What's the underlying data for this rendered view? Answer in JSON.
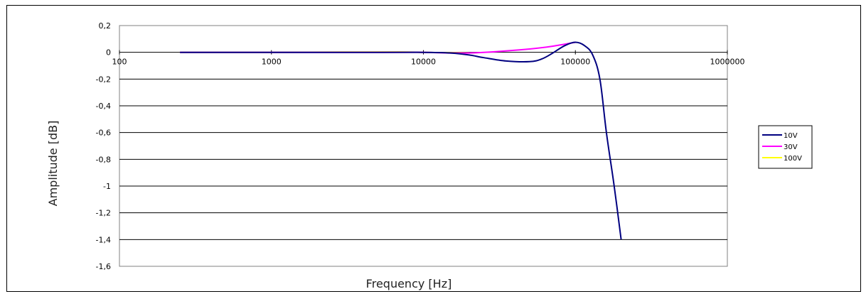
{
  "chart_data": {
    "type": "line",
    "title": "",
    "xlabel": "Frequency [Hz]",
    "ylabel": "Amplitude [dB]",
    "x_scale": "log",
    "xlim": [
      100,
      1000000
    ],
    "ylim": [
      -1.6,
      0.2
    ],
    "x_ticks": [
      100,
      1000,
      10000,
      100000,
      1000000
    ],
    "x_tick_labels": [
      "100",
      "1000",
      "10000",
      "100000",
      "1000000"
    ],
    "y_ticks": [
      0.2,
      0,
      -0.2,
      -0.4,
      -0.6,
      -0.8,
      -1,
      -1.2,
      -1.4,
      -1.6
    ],
    "y_tick_labels": [
      "0,2",
      "0",
      "-0,2",
      "-0,4",
      "-0,6",
      "-0,8",
      "-1",
      "-1,2",
      "-1,4",
      "-1,6"
    ],
    "grid": "horizontal",
    "legend_position": "right",
    "series": [
      {
        "name": "10V",
        "color": "#000080",
        "x": [
          250,
          1000,
          5000,
          10000,
          15000,
          20000,
          25000,
          35000,
          50000,
          60000,
          70000,
          85000,
          100000,
          115000,
          130000,
          145000,
          160000,
          180000,
          200000
        ],
        "y": [
          0,
          0,
          0,
          0,
          -0.005,
          -0.02,
          -0.04,
          -0.065,
          -0.07,
          -0.05,
          -0.01,
          0.05,
          0.075,
          0.05,
          -0.02,
          -0.2,
          -0.6,
          -1.0,
          -1.4
        ]
      },
      {
        "name": "30V",
        "color": "#ff00ff",
        "x": [
          250,
          1000,
          5000,
          10000,
          15000,
          20000,
          30000,
          50000,
          70000,
          100000
        ],
        "y": [
          0,
          0,
          0,
          0,
          -0.005,
          -0.005,
          0.005,
          0.025,
          0.045,
          0.075
        ]
      },
      {
        "name": "100V",
        "color": "#ffff00",
        "x": [
          250,
          1000,
          3000,
          7000,
          10000,
          15000,
          20000
        ],
        "y": [
          0,
          0,
          0.002,
          0.003,
          0,
          -0.003,
          -0.005
        ]
      }
    ]
  }
}
